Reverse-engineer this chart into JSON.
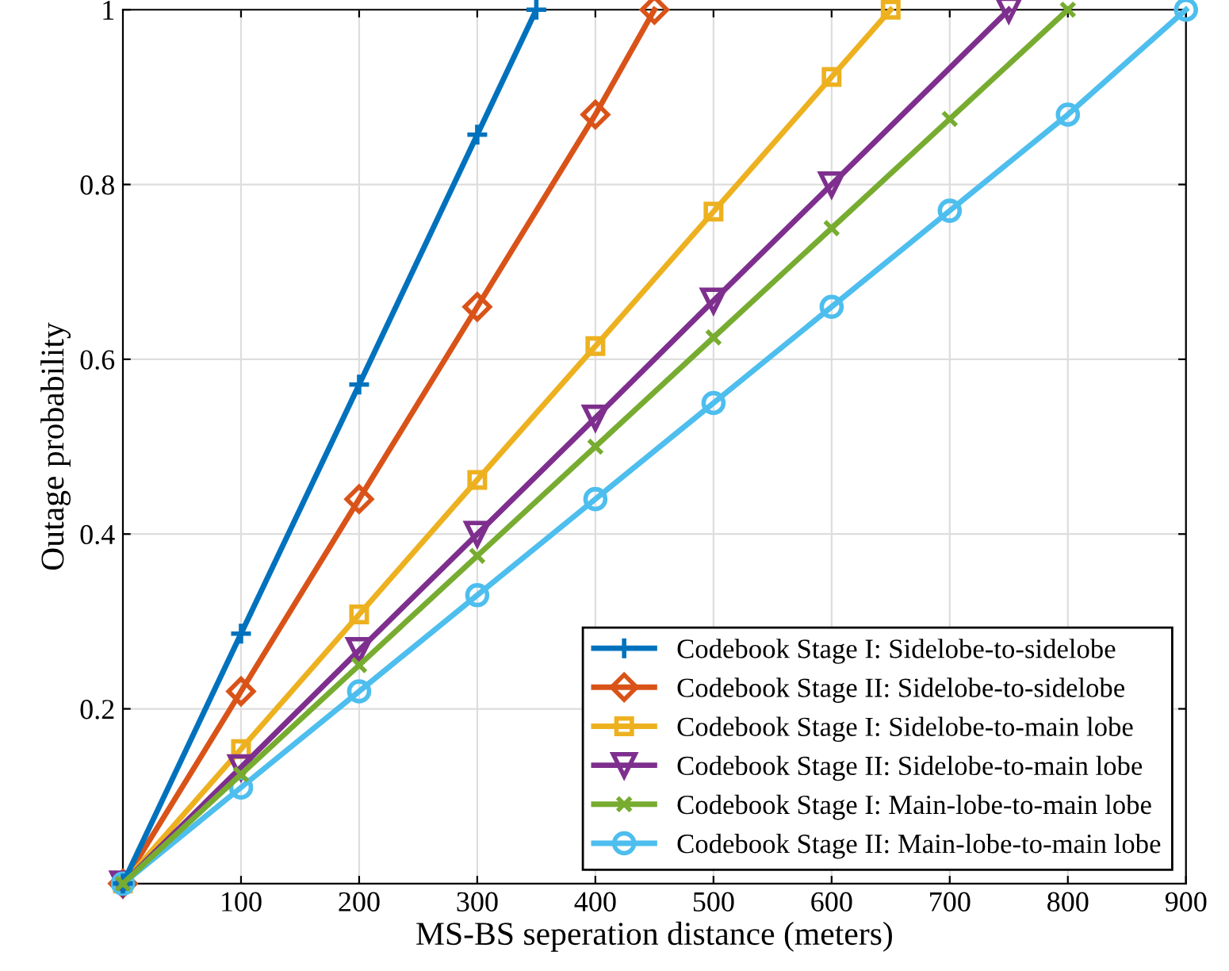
{
  "chart_data": {
    "type": "line",
    "xlabel": "MS-BS seperation distance (meters)",
    "ylabel": "Outage probability",
    "xlim": [
      0,
      900
    ],
    "xticks": [
      100,
      200,
      300,
      400,
      500,
      600,
      700,
      800,
      900
    ],
    "ylim": [
      0,
      1
    ],
    "yticks": [
      0.2,
      0.4,
      0.6,
      0.8,
      1
    ],
    "grid": true,
    "legend": "bottom right",
    "line_style": "solid",
    "series": [
      {
        "name": "Codebook Stage I: Sidelobe-to-sidelobe",
        "color": "#0072bd",
        "marker": "plus",
        "x": [
          0,
          100,
          200,
          300,
          350
        ],
        "values": [
          0,
          0.286,
          0.571,
          0.857,
          1
        ]
      },
      {
        "name": "Codebook Stage II: Sidelobe-to-sidelobe",
        "color": "#d95319",
        "marker": "diamond",
        "x": [
          0,
          100,
          200,
          300,
          400,
          450
        ],
        "values": [
          0,
          0.22,
          0.44,
          0.66,
          0.88,
          1
        ]
      },
      {
        "name": "Codebook Stage I: Sidelobe-to-main lobe",
        "color": "#edb120",
        "marker": "square",
        "x": [
          0,
          100,
          200,
          300,
          400,
          500,
          600,
          650
        ],
        "values": [
          0,
          0.154,
          0.308,
          0.462,
          0.615,
          0.769,
          0.923,
          1
        ]
      },
      {
        "name": "Codebook Stage II: Sidelobe-to-main lobe",
        "color": "#7e2f8e",
        "marker": "triangle",
        "x": [
          0,
          100,
          200,
          300,
          400,
          500,
          600,
          750
        ],
        "values": [
          0,
          0.133,
          0.267,
          0.4,
          0.533,
          0.667,
          0.8,
          1
        ]
      },
      {
        "name": "Codebook Stage I: Main-lobe-to-main lobe",
        "color": "#77ac30",
        "marker": "cross",
        "x": [
          0,
          100,
          200,
          300,
          400,
          500,
          600,
          700,
          800
        ],
        "values": [
          0,
          0.125,
          0.25,
          0.375,
          0.5,
          0.625,
          0.75,
          0.875,
          1
        ]
      },
      {
        "name": "Codebook Stage II: Main-lobe-to-main lobe",
        "color": "#4dbeee",
        "marker": "circle",
        "x": [
          0,
          100,
          200,
          300,
          400,
          500,
          600,
          700,
          800,
          900
        ],
        "values": [
          0,
          0.11,
          0.22,
          0.33,
          0.44,
          0.55,
          0.66,
          0.77,
          0.88,
          1
        ]
      }
    ]
  }
}
